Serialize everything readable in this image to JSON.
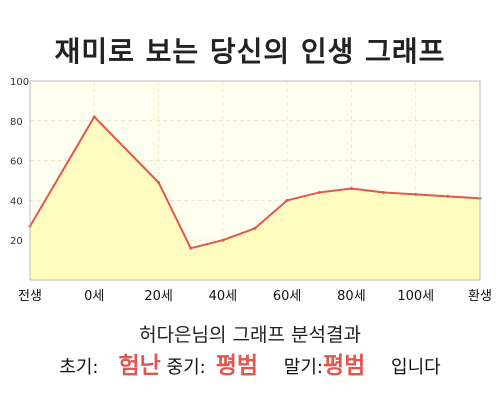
{
  "title": "재미로 보는 당신의 인생 그래프",
  "summary": "허다은님의 그래프 분석결과",
  "verdict": {
    "early_label": "초기:",
    "early_value": "험난",
    "mid_label": "중기:",
    "mid_value": "평범",
    "late_label": "말기:",
    "late_value": "평범",
    "suffix": "입니다"
  },
  "colors": {
    "line": "#e0574f",
    "fill": "#fffcc0",
    "plot_background": "#fffff0",
    "highlight_text": "#e0574f"
  },
  "chart_data": {
    "type": "area",
    "title": "재미로 보는 당신의 인생 그래프",
    "xlabel": "",
    "ylabel": "",
    "xlim": [
      -20,
      120
    ],
    "ylim": [
      0,
      100
    ],
    "grid": true,
    "x_ticks": [
      {
        "value": -20,
        "label": "전생"
      },
      {
        "value": 0,
        "label": "0세"
      },
      {
        "value": 20,
        "label": "20세"
      },
      {
        "value": 40,
        "label": "40세"
      },
      {
        "value": 60,
        "label": "60세"
      },
      {
        "value": 80,
        "label": "80세"
      },
      {
        "value": 100,
        "label": "100세"
      },
      {
        "value": 120,
        "label": "환생"
      }
    ],
    "y_ticks": [
      20,
      40,
      60,
      80,
      100
    ],
    "series": [
      {
        "x": [
          -20,
          0,
          20,
          30,
          40,
          50,
          60,
          70,
          80,
          90,
          100,
          110,
          120
        ],
        "values": [
          27,
          82,
          49,
          16,
          20,
          26,
          40,
          44,
          46,
          44,
          43,
          42,
          41
        ]
      }
    ]
  }
}
